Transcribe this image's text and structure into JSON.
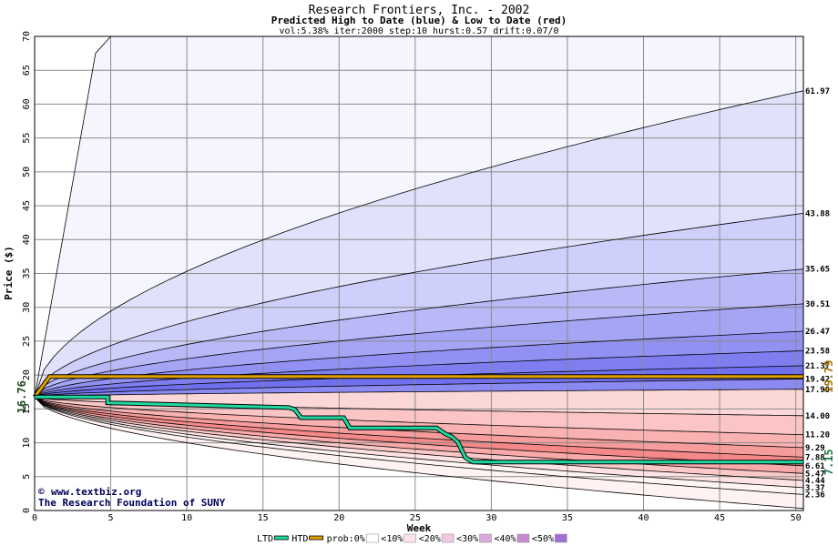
{
  "chart_data": {
    "type": "area",
    "title": "Research Frontiers, Inc. - 2002",
    "subtitle": "Predicted High to Date (blue) &  Low to Date (red)",
    "params": "vol:5.38% iter:2000 step:10 hurst:0.57 drift:0.07/0",
    "xlabel": "Week",
    "ylabel": "Price ($)",
    "xlim": [
      0,
      50.5
    ],
    "ylim": [
      0,
      70
    ],
    "xticks": [
      0,
      5,
      10,
      15,
      20,
      25,
      30,
      35,
      40,
      45,
      50
    ],
    "yticks": [
      0,
      5,
      10,
      15,
      20,
      25,
      30,
      35,
      40,
      45,
      50,
      55,
      60,
      65,
      70
    ],
    "grid": true,
    "start_price": 16.76,
    "start_label": "16.76",
    "high_percentile_curves": [
      {
        "end": 61.97,
        "label": "61.97"
      },
      {
        "end": 43.88,
        "label": "43.88"
      },
      {
        "end": 35.65,
        "label": "35.65"
      },
      {
        "end": 30.51,
        "label": "30.51"
      },
      {
        "end": 26.47,
        "label": "26.47"
      },
      {
        "end": 23.58,
        "label": "23.58"
      },
      {
        "end": 21.37,
        "label": "21.37"
      },
      {
        "end": 19.42,
        "label": "19.42"
      }
    ],
    "high_extreme_curve": {
      "x": [
        0,
        4,
        5
      ],
      "y": [
        16.76,
        67.5,
        70
      ]
    },
    "low_percentile_curves": [
      {
        "end": 17.9,
        "label": "17.90"
      },
      {
        "end": 14.0,
        "label": "14.00"
      },
      {
        "end": 11.2,
        "label": "11.20"
      },
      {
        "end": 9.29,
        "label": "9.29"
      },
      {
        "end": 7.88,
        "label": "7.88"
      },
      {
        "end": 6.61,
        "label": "6.61"
      },
      {
        "end": 5.47,
        "label": "5.47"
      },
      {
        "end": 4.44,
        "label": "4.44"
      },
      {
        "end": 3.37,
        "label": "3.37"
      },
      {
        "end": 2.36,
        "label": "2.36"
      }
    ],
    "low_extreme_end": 0.3,
    "htd_series": {
      "name": "HTD",
      "color": "#e0a000",
      "x": [
        0,
        1,
        50.5
      ],
      "y": [
        16.76,
        19.79,
        19.79
      ],
      "current": 19.79,
      "current_label": "19.79"
    },
    "ltd_series": {
      "name": "LTD",
      "color": "#1fd9a0",
      "x": [
        0,
        4.8,
        4.8,
        16.7,
        17.1,
        17.5,
        20.3,
        20.7,
        26.4,
        27.0,
        27.4,
        27.8,
        28.3,
        28.8,
        50.5
      ],
      "y": [
        16.76,
        16.76,
        15.9,
        15.2,
        14.9,
        13.7,
        13.7,
        12.2,
        12.2,
        11.3,
        10.9,
        10.1,
        7.8,
        7.15,
        7.15
      ],
      "current": 7.15,
      "current_label": "7.15"
    },
    "band_fill_colors": [
      "#f4f4fe",
      "#e1e1fb",
      "#cfcffb",
      "#b9b9f8",
      "#a5a5f6",
      "#9191f3",
      "#7e7ef0",
      "#7070ee",
      "#8a8af2"
    ],
    "band_fill_colors_low": [
      "#fde9e9",
      "#fcd7d7",
      "#fbc5c5",
      "#f9b1b1",
      "#f79c9c",
      "#f58888",
      "#f9a9a9",
      "#fbc8c8",
      "#fde3e3",
      "#fef4f4"
    ]
  },
  "credits": {
    "site": "www.textbiz.org",
    "copyright_symbol": "©",
    "foundation": "The Research Foundation of SUNY"
  },
  "legend": [
    {
      "label": "LTD",
      "kind": "line",
      "color": "#1fd9a0"
    },
    {
      "label": "HTD",
      "kind": "line",
      "color": "#e0a000"
    },
    {
      "label": "prob:0%",
      "kind": "box",
      "color": "#ffffff"
    },
    {
      "label": "<10%",
      "kind": "box",
      "color": "#fbe4ec"
    },
    {
      "label": "<20%",
      "kind": "box",
      "color": "#f0c8e0"
    },
    {
      "label": "<30%",
      "kind": "box",
      "color": "#d9a9d9"
    },
    {
      "label": "<40%",
      "kind": "box",
      "color": "#c58ad0"
    },
    {
      "label": "<50%",
      "kind": "box",
      "color": "#a070d6"
    }
  ]
}
